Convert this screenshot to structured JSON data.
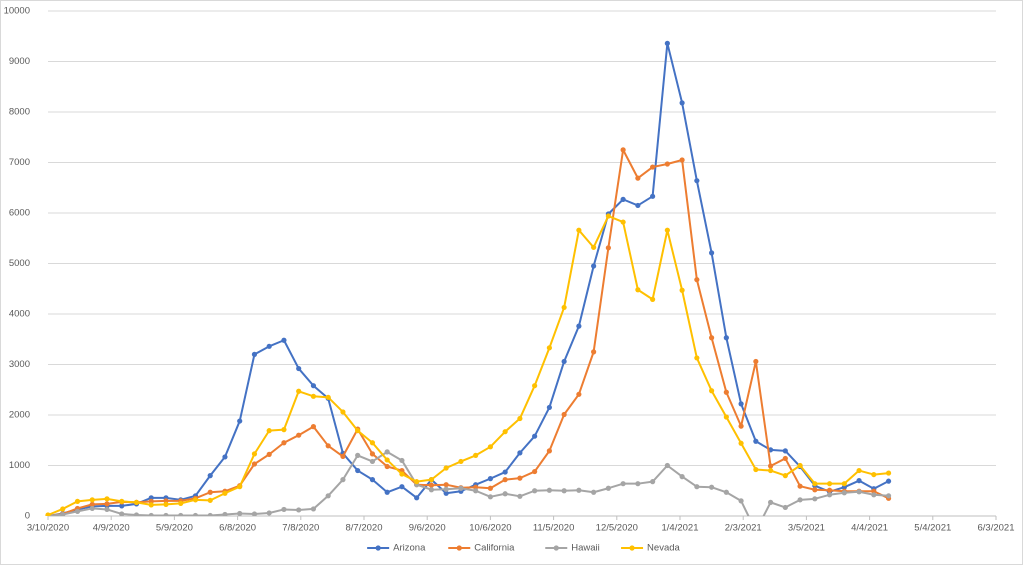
{
  "chart_data": {
    "type": "line",
    "x": [
      "3/10/2020",
      "3/17/2020",
      "3/24/2020",
      "3/31/2020",
      "4/7/2020",
      "4/14/2020",
      "4/21/2020",
      "4/28/2020",
      "5/5/2020",
      "5/12/2020",
      "5/19/2020",
      "5/26/2020",
      "6/2/2020",
      "6/9/2020",
      "6/16/2020",
      "6/23/2020",
      "6/30/2020",
      "7/7/2020",
      "7/14/2020",
      "7/21/2020",
      "7/28/2020",
      "8/4/2020",
      "8/11/2020",
      "8/18/2020",
      "8/25/2020",
      "9/1/2020",
      "9/8/2020",
      "9/15/2020",
      "9/22/2020",
      "9/29/2020",
      "10/6/2020",
      "10/13/2020",
      "10/20/2020",
      "10/27/2020",
      "11/3/2020",
      "11/10/2020",
      "11/17/2020",
      "11/24/2020",
      "12/1/2020",
      "12/8/2020",
      "12/15/2020",
      "12/22/2020",
      "12/29/2020",
      "1/5/2021",
      "1/12/2021",
      "1/19/2021",
      "1/26/2021",
      "2/2/2021",
      "2/9/2021",
      "2/16/2021",
      "2/23/2021",
      "3/2/2021",
      "3/9/2021",
      "3/16/2021",
      "3/23/2021",
      "3/30/2021",
      "4/6/2021",
      "4/13/2021"
    ],
    "series": [
      {
        "name": "Arizona",
        "color": "#4472c4",
        "values": [
          0,
          50,
          130,
          190,
          200,
          200,
          240,
          360,
          360,
          320,
          400,
          800,
          1170,
          1880,
          3200,
          3360,
          3480,
          2920,
          2580,
          2330,
          1240,
          900,
          720,
          470,
          580,
          360,
          720,
          450,
          490,
          620,
          740,
          870,
          1250,
          1580,
          2150,
          3060,
          3760,
          4950,
          5980,
          6270,
          6150,
          6330,
          9360,
          8180,
          6640,
          5210,
          3530,
          2220,
          1480,
          1310,
          1290,
          980,
          600,
          480,
          570,
          700,
          540,
          690
        ]
      },
      {
        "name": "California",
        "color": "#ed7d31",
        "values": [
          0,
          40,
          150,
          230,
          240,
          280,
          270,
          290,
          300,
          300,
          350,
          470,
          490,
          600,
          1030,
          1220,
          1450,
          1600,
          1770,
          1390,
          1180,
          1720,
          1230,
          980,
          900,
          620,
          610,
          620,
          560,
          570,
          550,
          720,
          750,
          880,
          1290,
          2010,
          2410,
          3250,
          5310,
          7250,
          6690,
          6910,
          6970,
          7050,
          4680,
          3530,
          2450,
          1780,
          3060,
          990,
          1140,
          590,
          520,
          510,
          490,
          490,
          490,
          350
        ]
      },
      {
        "name": "Hawaii",
        "color": "#a5a5a5",
        "values": [
          0,
          30,
          90,
          150,
          130,
          40,
          20,
          10,
          10,
          10,
          10,
          10,
          30,
          50,
          40,
          60,
          130,
          120,
          140,
          400,
          720,
          1200,
          1080,
          1270,
          1100,
          620,
          520,
          530,
          550,
          500,
          380,
          440,
          390,
          500,
          510,
          500,
          510,
          470,
          550,
          640,
          640,
          680,
          1000,
          780,
          580,
          570,
          470,
          300,
          -300,
          270,
          170,
          320,
          340,
          420,
          460,
          480,
          420,
          400
        ]
      },
      {
        "name": "Nevada",
        "color": "#ffc000",
        "values": [
          20,
          140,
          290,
          320,
          340,
          290,
          270,
          220,
          230,
          250,
          320,
          310,
          450,
          580,
          1230,
          1690,
          1710,
          2470,
          2370,
          2350,
          2060,
          1690,
          1450,
          1110,
          830,
          680,
          720,
          950,
          1080,
          1200,
          1370,
          1670,
          1930,
          2580,
          3330,
          4130,
          5660,
          5320,
          5940,
          5820,
          4480,
          4290,
          5660,
          4470,
          3130,
          2480,
          1960,
          1440,
          920,
          900,
          800,
          1000,
          640,
          640,
          640,
          900,
          820,
          850
        ]
      }
    ],
    "xlim": [
      "3/10/2020",
      "6/3/2021"
    ],
    "xticks": [
      "3/10/2020",
      "4/9/2020",
      "5/9/2020",
      "6/8/2020",
      "7/8/2020",
      "8/7/2020",
      "9/6/2020",
      "10/6/2020",
      "11/5/2020",
      "12/5/2020",
      "1/4/2021",
      "2/3/2021",
      "3/5/2021",
      "4/4/2021",
      "5/4/2021",
      "6/3/2021"
    ],
    "ylim": [
      0,
      10000
    ],
    "yticks": [
      0,
      1000,
      2000,
      3000,
      4000,
      5000,
      6000,
      7000,
      8000,
      9000,
      10000
    ],
    "grid": true,
    "legend": "bottom"
  }
}
